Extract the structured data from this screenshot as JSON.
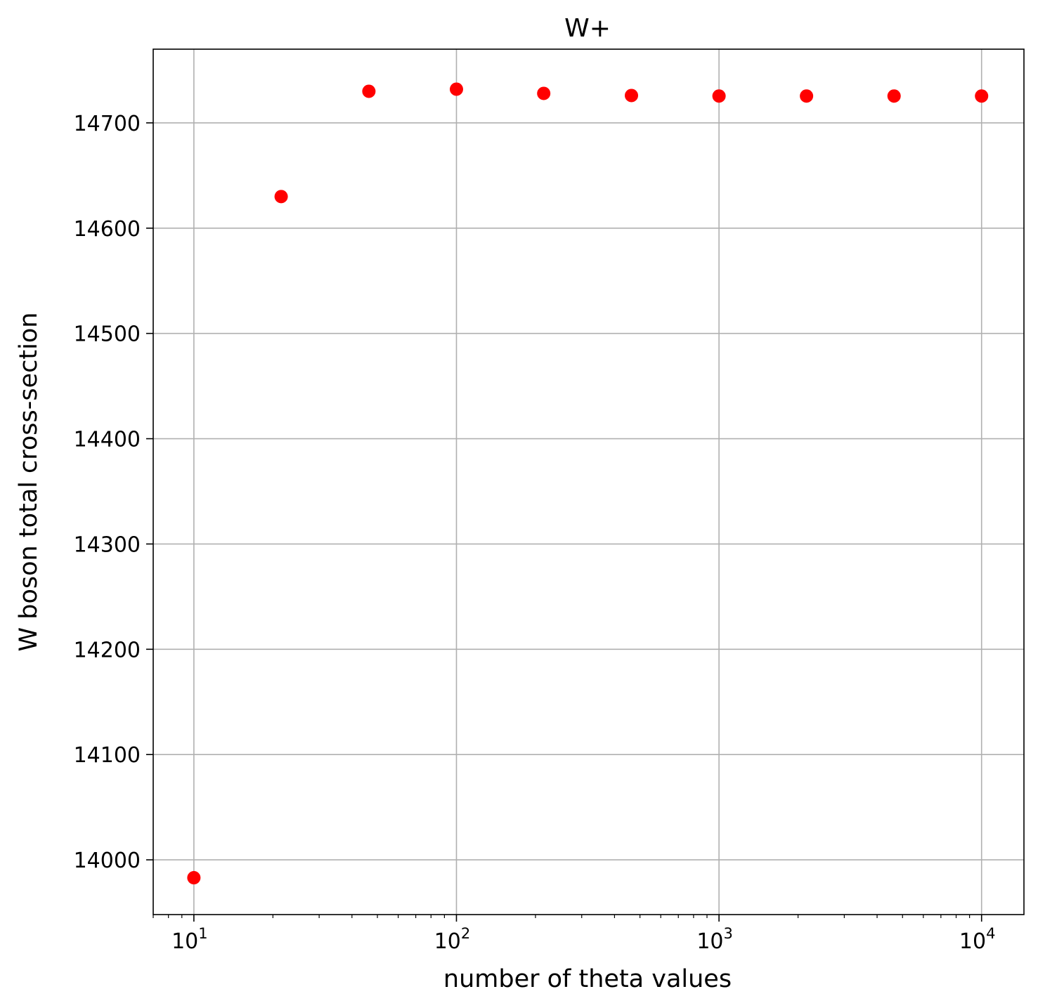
{
  "chart_data": {
    "type": "scatter",
    "title": "W+",
    "xlabel": "number of theta values",
    "ylabel": "W boson total cross-section",
    "x_scale": "log",
    "xlim": [
      7,
      14500
    ],
    "ylim": [
      13948,
      14770
    ],
    "grid": true,
    "marker_color": "#ff0000",
    "x_ticks": [
      {
        "value": 10,
        "base": "10",
        "exp": "1"
      },
      {
        "value": 100,
        "base": "10",
        "exp": "2"
      },
      {
        "value": 1000,
        "base": "10",
        "exp": "3"
      },
      {
        "value": 10000,
        "base": "10",
        "exp": "4"
      }
    ],
    "y_ticks": [
      {
        "value": 14000,
        "label": "14000"
      },
      {
        "value": 14100,
        "label": "14100"
      },
      {
        "value": 14200,
        "label": "14200"
      },
      {
        "value": 14300,
        "label": "14300"
      },
      {
        "value": 14400,
        "label": "14400"
      },
      {
        "value": 14500,
        "label": "14500"
      },
      {
        "value": 14600,
        "label": "14600"
      },
      {
        "value": 14700,
        "label": "14700"
      }
    ],
    "points": [
      {
        "x": 10,
        "y": 13983
      },
      {
        "x": 21.5,
        "y": 14630
      },
      {
        "x": 46.4,
        "y": 14730
      },
      {
        "x": 100,
        "y": 14732
      },
      {
        "x": 215,
        "y": 14728
      },
      {
        "x": 464,
        "y": 14726
      },
      {
        "x": 1000,
        "y": 14725.5
      },
      {
        "x": 2154,
        "y": 14725.5
      },
      {
        "x": 4642,
        "y": 14725.5
      },
      {
        "x": 10000,
        "y": 14725.5
      }
    ]
  }
}
